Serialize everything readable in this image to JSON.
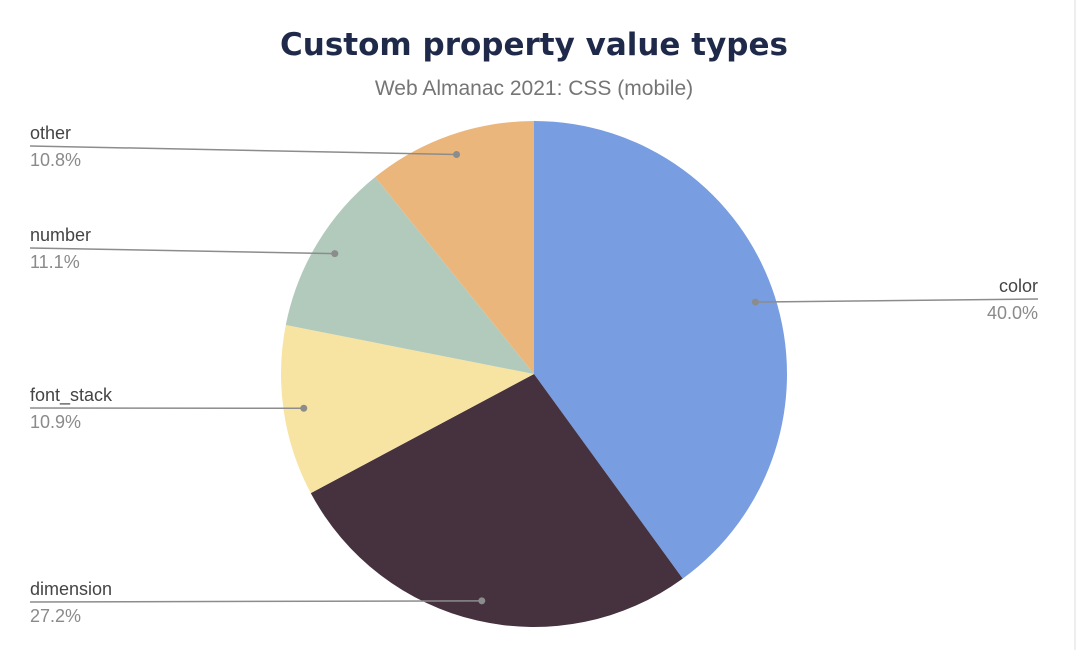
{
  "chart_data": {
    "type": "pie",
    "title": "Custom property value types",
    "subtitle": "Web Almanac 2021: CSS (mobile)",
    "slices": [
      {
        "label": "color",
        "value": 40.0,
        "display": "40.0%",
        "color": "#789de1"
      },
      {
        "label": "dimension",
        "value": 27.2,
        "display": "27.2%",
        "color": "#46313e"
      },
      {
        "label": "font_stack",
        "value": 10.9,
        "display": "10.9%",
        "color": "#f7e4a3"
      },
      {
        "label": "number",
        "value": 11.1,
        "display": "11.1%",
        "color": "#b2cabc"
      },
      {
        "label": "other",
        "value": 10.8,
        "display": "10.8%",
        "color": "#ebb67c"
      }
    ],
    "legend": "labels-outside-with-leader-lines"
  }
}
